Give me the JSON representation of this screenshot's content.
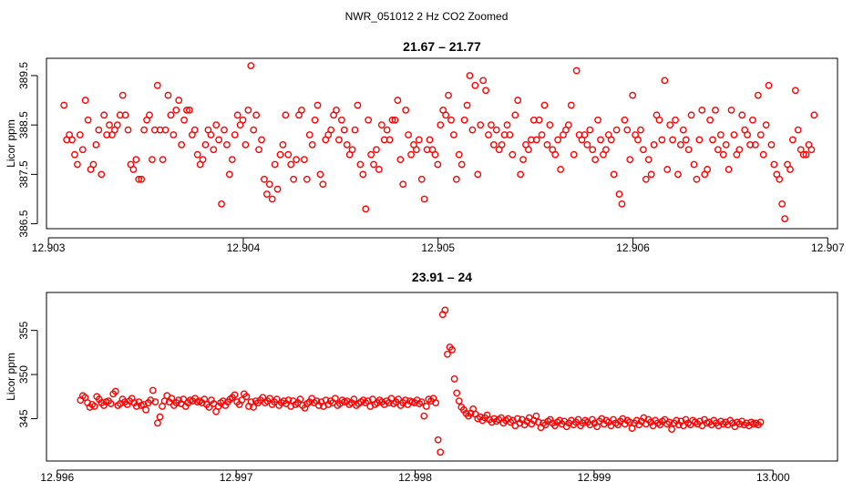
{
  "figure_title": "NWR_051012  2 Hz CO2 Zoomed",
  "chart_data": [
    {
      "type": "scatter",
      "title": "21.67 – 21.77",
      "xlabel": "",
      "ylabel": "Licor ppm",
      "marker": "open-circle",
      "color": "#ff0000",
      "xlim": [
        12.90299,
        12.90705
      ],
      "ylim": [
        386.4,
        389.85
      ],
      "x_ticks": [
        12.903,
        12.904,
        12.905,
        12.906,
        12.907
      ],
      "x_tick_labels": [
        "12.903",
        "12.904",
        "12.905",
        "12.906",
        "12.907"
      ],
      "y_ticks": [
        386.5,
        387.5,
        388.5,
        389.5
      ],
      "y_tick_labels": [
        "386.5",
        "387.5",
        "388.5",
        "389.5"
      ],
      "x_start": 12.90308,
      "x_end": 12.90693,
      "y_values": [
        388.9,
        388.2,
        388.3,
        388.2,
        387.9,
        387.7,
        388.3,
        388.0,
        389.0,
        388.6,
        387.6,
        387.7,
        388.1,
        388.4,
        387.5,
        388.7,
        388.3,
        388.5,
        388.3,
        388.4,
        388.5,
        388.7,
        389.1,
        388.7,
        388.4,
        387.7,
        387.6,
        387.8,
        387.4,
        387.4,
        388.4,
        388.6,
        388.7,
        387.8,
        388.4,
        389.3,
        388.4,
        387.8,
        388.4,
        389.1,
        388.7,
        388.3,
        388.8,
        389.0,
        388.1,
        388.6,
        388.8,
        388.8,
        388.3,
        388.4,
        387.9,
        387.7,
        387.8,
        388.1,
        388.4,
        388.3,
        388.0,
        388.5,
        388.2,
        386.9,
        388.4,
        388.1,
        387.5,
        387.8,
        388.3,
        388.7,
        388.5,
        388.6,
        388.1,
        388.8,
        389.7,
        388.4,
        388.7,
        388.0,
        388.2,
        387.4,
        387.1,
        387.3,
        387.0,
        387.7,
        387.2,
        387.9,
        388.1,
        388.7,
        387.9,
        387.7,
        387.4,
        387.8,
        388.7,
        388.8,
        387.8,
        387.4,
        388.3,
        388.1,
        388.6,
        388.9,
        387.5,
        387.3,
        388.2,
        388.3,
        388.4,
        388.7,
        388.8,
        388.2,
        388.6,
        388.4,
        388.1,
        387.9,
        388.0,
        388.4,
        388.9,
        387.7,
        387.5,
        386.8,
        388.6,
        387.9,
        387.7,
        388.0,
        387.6,
        388.5,
        388.2,
        388.4,
        388.2,
        388.6,
        388.6,
        389.0,
        387.8,
        387.3,
        388.8,
        388.3,
        387.9,
        388.1,
        388.0,
        388.2,
        387.4,
        387.0,
        388.0,
        388.2,
        388.0,
        387.9,
        387.7,
        388.5,
        388.8,
        388.7,
        389.1,
        388.6,
        388.3,
        387.4,
        387.9,
        387.7,
        388.6,
        388.9,
        389.5,
        388.4,
        389.3,
        387.5,
        388.5,
        389.4,
        389.2,
        388.3,
        388.5,
        388.1,
        388.4,
        388.0,
        388.1,
        388.3,
        388.5,
        388.3,
        387.9,
        388.7,
        389.0,
        387.5,
        387.8,
        388.1,
        388.0,
        388.2,
        388.6,
        388.2,
        388.6,
        388.3,
        388.9,
        388.1,
        388.5,
        388.0,
        387.9,
        388.2,
        387.6,
        388.3,
        388.4,
        388.5,
        388.9,
        387.9,
        389.6,
        388.3,
        388.2,
        388.3,
        388.1,
        388.4,
        388.0,
        387.8,
        388.6,
        388.2,
        387.9,
        388.0,
        388.3,
        388.2,
        387.5,
        388.4,
        387.1,
        386.9,
        388.6,
        388.4,
        387.8,
        389.1,
        388.3,
        388.2,
        388.4,
        388.0,
        387.4,
        387.8,
        387.5,
        388.1,
        388.7,
        388.6,
        388.2,
        389.4,
        387.6,
        388.5,
        388.2,
        388.6,
        387.5,
        388.1,
        388.4,
        388.2,
        388.0,
        388.7,
        387.7,
        387.4,
        388.2,
        388.8,
        387.5,
        387.6,
        388.6,
        388.2,
        388.8,
        388.0,
        388.3,
        387.9,
        388.1,
        387.6,
        388.8,
        388.3,
        387.9,
        388.0,
        388.7,
        388.4,
        388.3,
        388.1,
        388.6,
        388.1,
        389.1,
        388.3,
        387.9,
        388.5,
        389.3,
        388.1,
        387.7,
        387.5,
        387.4,
        386.9,
        386.6,
        387.7,
        387.6,
        388.2,
        389.2,
        388.4,
        388.0,
        387.9,
        387.9,
        388.1,
        388.0,
        388.7
      ]
    },
    {
      "type": "scatter",
      "title": "23.91 – 24",
      "xlabel": "",
      "ylabel": "Licor ppm",
      "marker": "open-circle",
      "color": "#ff0000",
      "xlim": [
        12.99594,
        13.00036
      ],
      "ylim": [
        340.2,
        359.3
      ],
      "x_ticks": [
        12.996,
        12.997,
        12.998,
        12.999,
        13.0
      ],
      "x_tick_labels": [
        "12.996",
        "12.997",
        "12.998",
        "12.999",
        "13.000"
      ],
      "y_ticks": [
        345,
        350,
        355
      ],
      "y_tick_labels": [
        "345",
        "350",
        "355"
      ],
      "x_start": 12.99613,
      "x_end": 12.99993,
      "y_values": [
        347.1,
        347.6,
        347.4,
        346.8,
        346.3,
        346.6,
        346.4,
        347.5,
        347.2,
        346.8,
        346.5,
        346.9,
        347.0,
        346.7,
        347.8,
        348.1,
        346.5,
        346.7,
        347.2,
        346.9,
        346.6,
        347.0,
        347.3,
        346.8,
        346.4,
        346.9,
        346.5,
        346.6,
        346.0,
        346.8,
        347.1,
        348.2,
        346.9,
        344.5,
        345.2,
        346.4,
        347.0,
        347.6,
        346.9,
        347.3,
        346.5,
        346.8,
        347.1,
        346.7,
        347.2,
        346.4,
        346.8,
        347.1,
        347.0,
        347.3,
        346.9,
        347.0,
        346.8,
        347.2,
        346.6,
        346.3,
        347.1,
        346.7,
        345.8,
        346.4,
        346.8,
        347.0,
        346.5,
        346.9,
        347.2,
        347.4,
        347.7,
        346.9,
        346.6,
        347.1,
        347.8,
        347.5,
        346.4,
        346.9,
        346.3,
        347.0,
        346.8,
        347.1,
        347.4,
        346.8,
        347.0,
        347.3,
        346.6,
        346.9,
        347.2,
        346.5,
        346.8,
        347.0,
        346.7,
        347.1,
        346.4,
        347.0,
        346.6,
        346.8,
        347.2,
        346.5,
        346.2,
        346.7,
        346.9,
        347.3,
        346.8,
        347.0,
        346.5,
        346.9,
        346.4,
        347.1,
        346.6,
        347.0,
        346.8,
        347.3,
        346.5,
        346.7,
        347.1,
        346.9,
        347.0,
        346.6,
        346.8,
        347.2,
        346.5,
        346.7,
        346.9,
        347.1,
        346.8,
        347.0,
        346.4,
        347.2,
        346.6,
        346.8,
        347.1,
        346.9,
        346.6,
        347.0,
        346.8,
        347.3,
        346.7,
        346.9,
        347.2,
        346.5,
        346.8,
        347.1,
        346.6,
        347.0,
        346.9,
        346.8,
        347.1,
        346.7,
        346.9,
        345.3,
        346.4,
        347.2,
        347.0,
        347.3,
        346.8,
        342.6,
        341.2,
        356.8,
        357.3,
        352.3,
        353.1,
        352.8,
        349.5,
        347.9,
        347.0,
        346.3,
        346.0,
        345.6,
        345.3,
        345.6,
        346.1,
        345.5,
        345.0,
        345.2,
        344.8,
        345.1,
        345.4,
        344.9,
        344.6,
        345.0,
        344.7,
        344.9,
        345.1,
        344.5,
        344.8,
        345.0,
        344.6,
        344.8,
        344.2,
        345.0,
        344.5,
        344.9,
        344.3,
        344.7,
        345.1,
        344.4,
        344.8,
        345.3,
        344.6,
        344.0,
        344.5,
        344.3,
        344.7,
        344.9,
        344.5,
        344.2,
        344.6,
        344.8,
        344.4,
        344.7,
        344.1,
        344.5,
        344.8,
        344.3,
        344.6,
        344.9,
        344.2,
        344.5,
        344.8,
        344.6,
        344.3,
        344.9,
        344.5,
        344.1,
        344.7,
        345.0,
        344.4,
        344.8,
        344.6,
        344.2,
        344.9,
        344.5,
        344.3,
        344.7,
        345.0,
        344.4,
        344.8,
        344.6,
        343.9,
        344.5,
        344.8,
        344.3,
        344.7,
        345.1,
        344.4,
        344.9,
        344.6,
        344.2,
        344.8,
        344.5,
        344.3,
        344.7,
        344.9,
        344.4,
        344.6,
        343.8,
        344.5,
        344.8,
        344.3,
        344.7,
        344.2,
        344.9,
        344.5,
        344.3,
        344.8,
        344.6,
        344.4,
        344.7,
        344.2,
        344.9,
        344.5,
        344.6,
        344.3,
        344.8,
        344.5,
        344.2,
        344.7,
        344.4,
        344.6,
        344.3,
        344.8,
        344.5,
        344.1,
        344.6,
        344.4,
        344.7,
        344.3,
        344.5,
        344.2,
        344.6,
        344.4,
        344.5,
        344.3,
        344.6
      ]
    }
  ]
}
